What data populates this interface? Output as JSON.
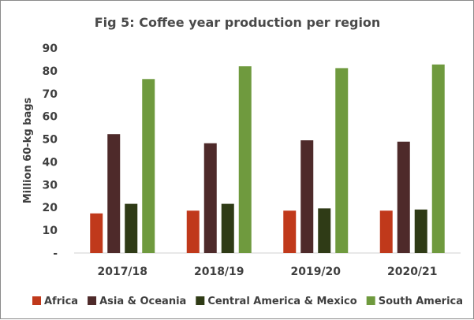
{
  "chart_data": {
    "type": "bar",
    "title": "Fig 5: Coffee year production per region",
    "xlabel": "",
    "ylabel": "Million 60-kg bags",
    "ylim": [
      0,
      90
    ],
    "yticks": [
      "-",
      "10",
      "20",
      "30",
      "40",
      "50",
      "60",
      "70",
      "80",
      "90"
    ],
    "grid": false,
    "legend_position": "bottom",
    "categories": [
      "2017/18",
      "2018/19",
      "2019/20",
      "2020/21"
    ],
    "series": [
      {
        "name": "Africa",
        "color": "#c0391b",
        "values": [
          17.4,
          18.6,
          18.6,
          18.6
        ]
      },
      {
        "name": "Asia & Oceania",
        "color": "#4e2a2a",
        "values": [
          52.2,
          48.2,
          49.5,
          48.9
        ]
      },
      {
        "name": "Central America & Mexico",
        "color": "#2f3b16",
        "values": [
          21.6,
          21.6,
          19.6,
          19.1
        ]
      },
      {
        "name": "South America",
        "color": "#6f9a3e",
        "values": [
          76.4,
          82.0,
          81.2,
          82.8
        ]
      }
    ]
  }
}
